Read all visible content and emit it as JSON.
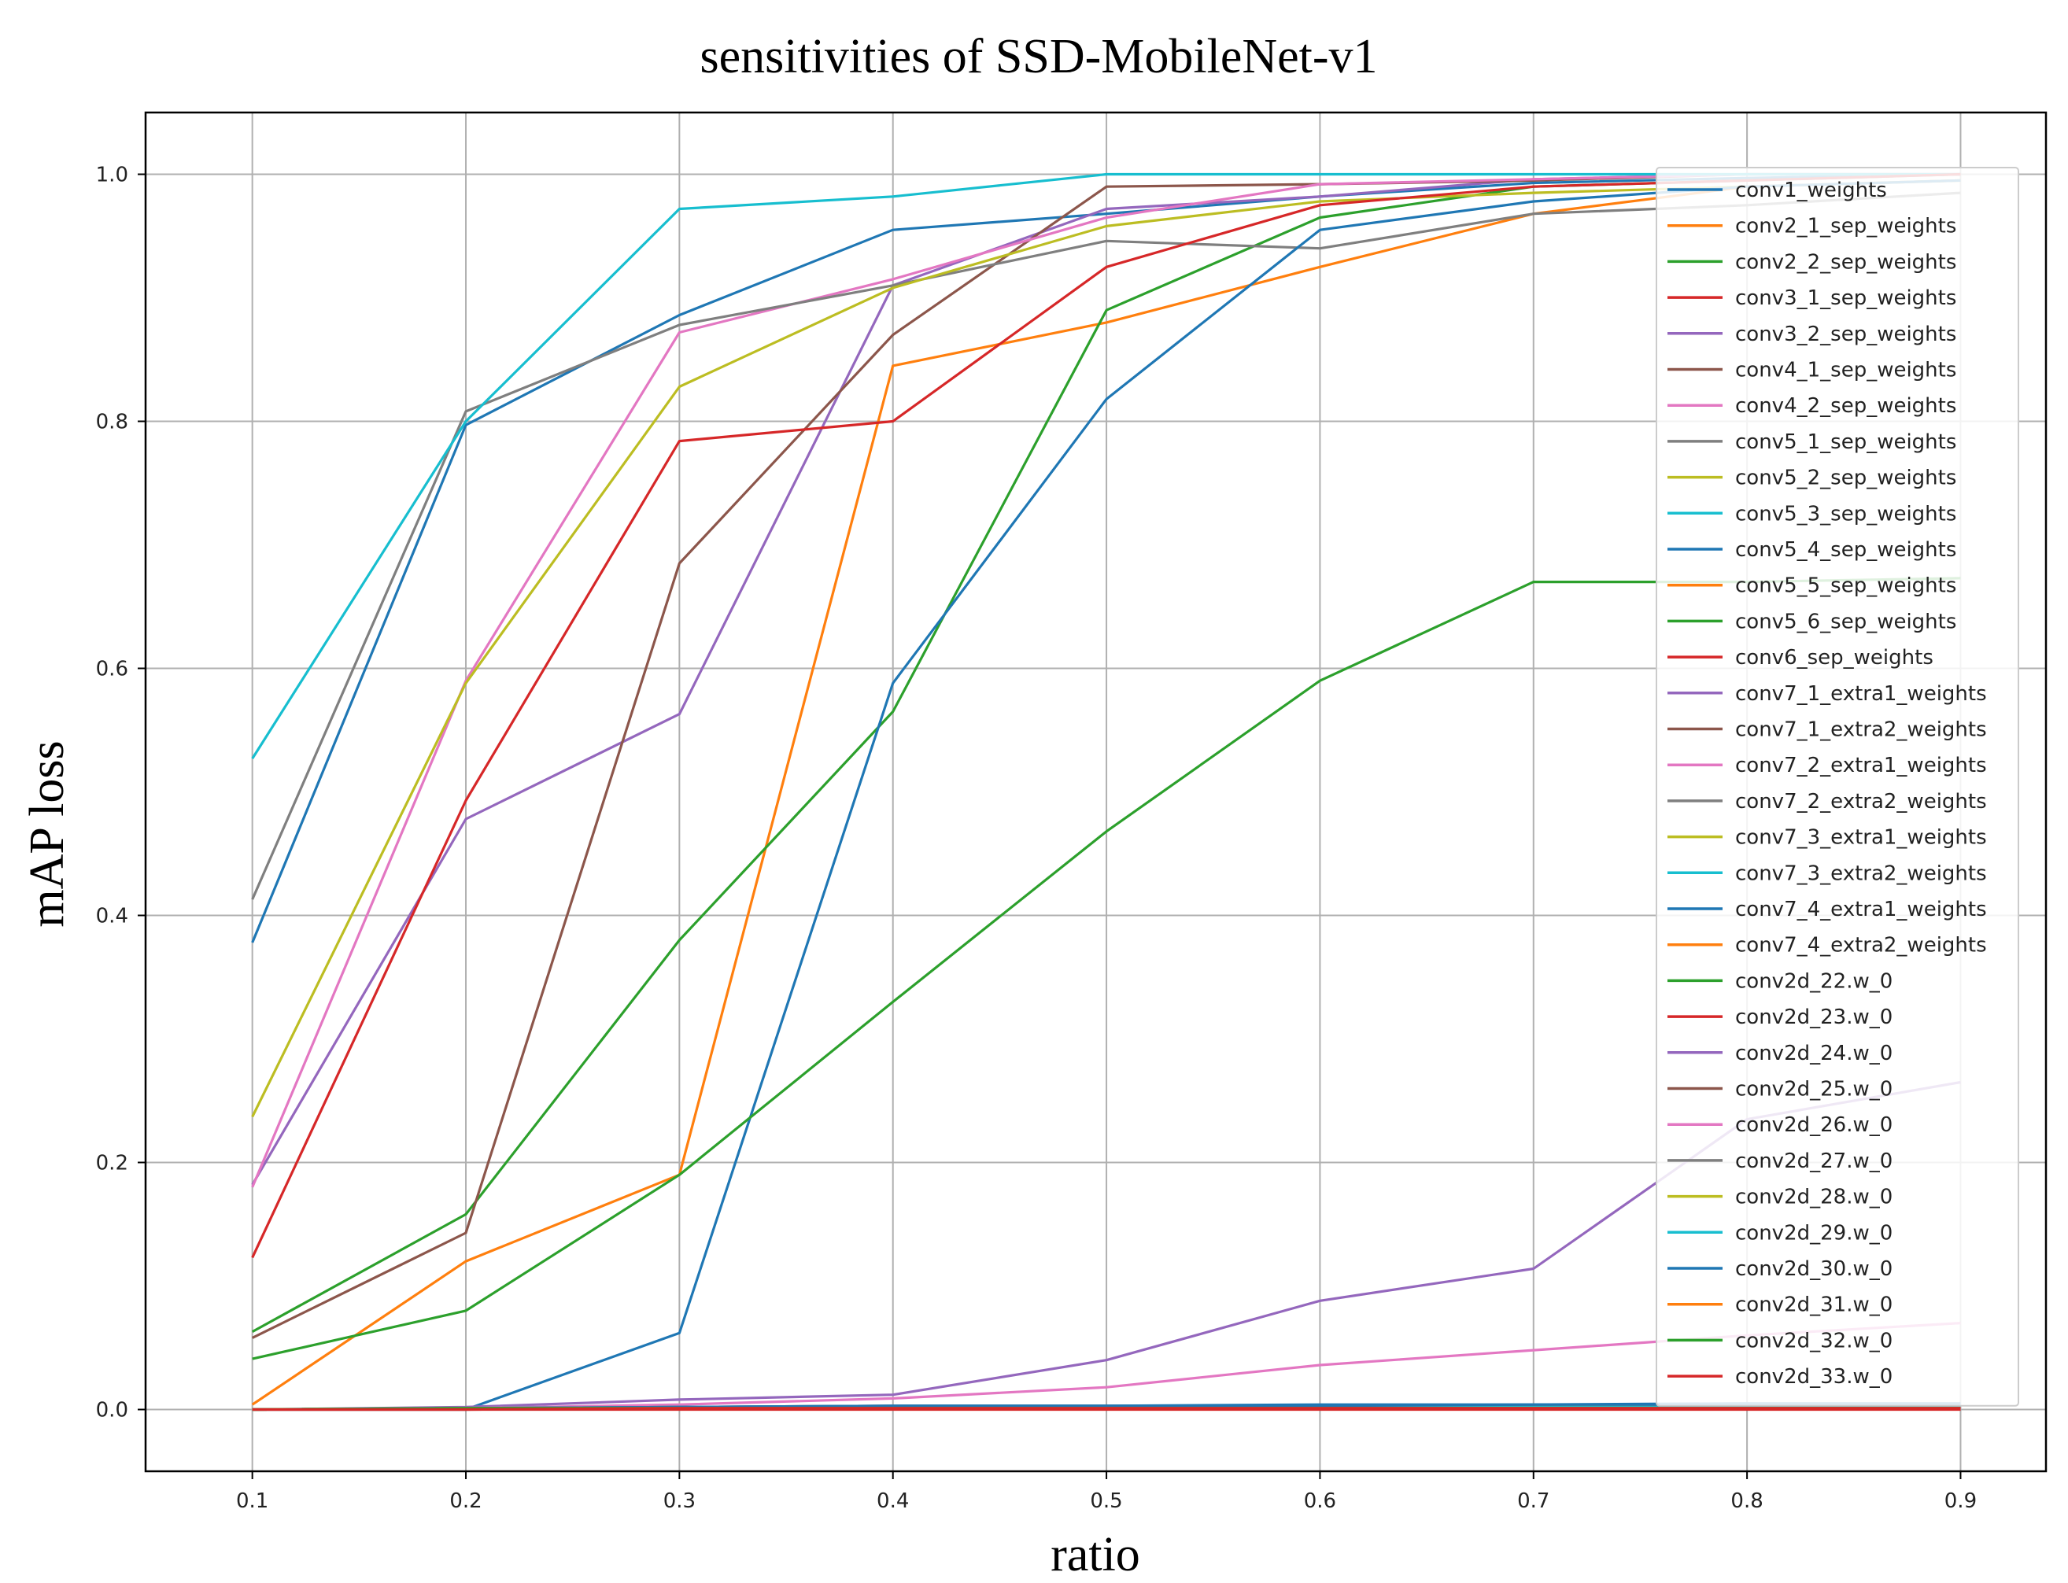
{
  "chart_data": {
    "type": "line",
    "title": "sensitivities of SSD-MobileNet-v1",
    "xlabel": "ratio",
    "ylabel": "mAP loss",
    "xlim": [
      0.05,
      0.94
    ],
    "ylim": [
      -0.05,
      1.05
    ],
    "grid": true,
    "legend_position": "right",
    "x": [
      0.1,
      0.2,
      0.3,
      0.4,
      0.5,
      0.6,
      0.7,
      0.8,
      0.9
    ],
    "x_ticks": [
      "0.1",
      "0.2",
      "0.3",
      "0.4",
      "0.5",
      "0.6",
      "0.7",
      "0.8",
      "0.9"
    ],
    "y_ticks": [
      "0.0",
      "0.2",
      "0.4",
      "0.6",
      "0.8",
      "1.0"
    ],
    "series": [
      {
        "name": "conv1_weights",
        "color": "#1f77b4",
        "values": [
          0.378,
          0.797,
          0.886,
          0.955,
          0.968,
          0.982,
          0.993,
          0.997,
          1.0
        ]
      },
      {
        "name": "conv2_1_sep_weights",
        "color": "#ff7f0e",
        "values": [
          0.004,
          0.12,
          0.19,
          0.845,
          0.88,
          0.925,
          0.968,
          0.99,
          0.995
        ]
      },
      {
        "name": "conv2_2_sep_weights",
        "color": "#2ca02c",
        "values": [
          0.063,
          0.158,
          0.38,
          0.565,
          0.89,
          0.965,
          0.99,
          0.995,
          1.0
        ]
      },
      {
        "name": "conv3_1_sep_weights",
        "color": "#d62728",
        "values": [
          0.0,
          0.001,
          0.001,
          0.001,
          0.001,
          0.001,
          0.001,
          0.001,
          0.001
        ]
      },
      {
        "name": "conv3_2_sep_weights",
        "color": "#9467bd",
        "values": [
          0.182,
          0.478,
          0.563,
          0.91,
          0.972,
          0.982,
          0.996,
          1.0,
          1.0
        ]
      },
      {
        "name": "conv4_1_sep_weights",
        "color": "#8c564b",
        "values": [
          0.058,
          0.143,
          0.685,
          0.87,
          0.99,
          0.992,
          0.995,
          1.0,
          1.0
        ]
      },
      {
        "name": "conv4_2_sep_weights",
        "color": "#e377c2",
        "values": [
          0.18,
          0.59,
          0.872,
          0.915,
          0.965,
          0.992,
          0.996,
          1.0,
          1.0
        ]
      },
      {
        "name": "conv5_1_sep_weights",
        "color": "#7f7f7f",
        "values": [
          0.413,
          0.808,
          0.878,
          0.91,
          0.946,
          0.94,
          0.968,
          0.975,
          0.985
        ]
      },
      {
        "name": "conv5_2_sep_weights",
        "color": "#bcbd22",
        "values": [
          0.237,
          0.588,
          0.828,
          0.908,
          0.958,
          0.978,
          0.985,
          0.99,
          0.995
        ]
      },
      {
        "name": "conv5_3_sep_weights",
        "color": "#17becf",
        "values": [
          0.527,
          0.8,
          0.972,
          0.982,
          1.0,
          1.0,
          1.0,
          1.0,
          1.0
        ]
      },
      {
        "name": "conv5_4_sep_weights",
        "color": "#1f77b4",
        "values": [
          0.0,
          0.0,
          0.062,
          0.588,
          0.818,
          0.955,
          0.978,
          0.99,
          0.995
        ]
      },
      {
        "name": "conv5_5_sep_weights",
        "color": "#ff7f0e",
        "values": [
          0.0,
          0.001,
          0.002,
          0.002,
          0.002,
          0.002,
          0.002,
          0.002,
          0.002
        ]
      },
      {
        "name": "conv5_6_sep_weights",
        "color": "#2ca02c",
        "values": [
          0.041,
          0.08,
          0.19,
          0.33,
          0.468,
          0.59,
          0.67,
          0.67,
          0.673
        ]
      },
      {
        "name": "conv6_sep_weights",
        "color": "#d62728",
        "values": [
          0.123,
          0.493,
          0.784,
          0.8,
          0.925,
          0.975,
          0.99,
          0.995,
          1.0
        ]
      },
      {
        "name": "conv7_1_extra1_weights",
        "color": "#9467bd",
        "values": [
          0.0,
          0.002,
          0.008,
          0.012,
          0.04,
          0.088,
          0.114,
          0.235,
          0.265
        ]
      },
      {
        "name": "conv7_1_extra2_weights",
        "color": "#8c564b",
        "values": [
          0.0,
          0.001,
          0.002,
          0.003,
          0.003,
          0.003,
          0.003,
          0.003,
          0.003
        ]
      },
      {
        "name": "conv7_2_extra1_weights",
        "color": "#e377c2",
        "values": [
          0.0,
          0.001,
          0.004,
          0.009,
          0.018,
          0.036,
          0.048,
          0.06,
          0.07
        ]
      },
      {
        "name": "conv7_2_extra2_weights",
        "color": "#7f7f7f",
        "values": [
          0.0,
          0.001,
          0.002,
          0.002,
          0.002,
          0.002,
          0.002,
          0.002,
          0.002
        ]
      },
      {
        "name": "conv7_3_extra1_weights",
        "color": "#bcbd22",
        "values": [
          0.0,
          0.001,
          0.002,
          0.002,
          0.002,
          0.002,
          0.002,
          0.002,
          0.002
        ]
      },
      {
        "name": "conv7_3_extra2_weights",
        "color": "#17becf",
        "values": [
          0.0,
          0.001,
          0.002,
          0.002,
          0.002,
          0.002,
          0.002,
          0.002,
          0.002
        ]
      },
      {
        "name": "conv7_4_extra1_weights",
        "color": "#1f77b4",
        "values": [
          0.0,
          0.001,
          0.002,
          0.003,
          0.003,
          0.004,
          0.004,
          0.005,
          0.005
        ]
      },
      {
        "name": "conv7_4_extra2_weights",
        "color": "#ff7f0e",
        "values": [
          0.0,
          0.001,
          0.001,
          0.001,
          0.001,
          0.001,
          0.001,
          0.001,
          0.001
        ]
      },
      {
        "name": "conv2d_22.w_0",
        "color": "#2ca02c",
        "values": [
          0.0,
          0.001,
          0.001,
          0.001,
          0.001,
          0.001,
          0.001,
          0.001,
          0.001
        ]
      },
      {
        "name": "conv2d_23.w_0",
        "color": "#d62728",
        "values": [
          0.0,
          0.0,
          0.0,
          0.0,
          0.0,
          0.0,
          0.0,
          0.0,
          0.0
        ]
      },
      {
        "name": "conv2d_24.w_0",
        "color": "#9467bd",
        "values": [
          0.0,
          0.001,
          0.001,
          0.001,
          0.001,
          0.001,
          0.001,
          0.001,
          0.001
        ]
      },
      {
        "name": "conv2d_25.w_0",
        "color": "#8c564b",
        "values": [
          0.0,
          0.0,
          0.001,
          0.001,
          0.001,
          0.001,
          0.001,
          0.001,
          0.001
        ]
      },
      {
        "name": "conv2d_26.w_0",
        "color": "#e377c2",
        "values": [
          0.0,
          0.001,
          0.001,
          0.001,
          0.001,
          0.001,
          0.001,
          0.001,
          0.001
        ]
      },
      {
        "name": "conv2d_27.w_0",
        "color": "#7f7f7f",
        "values": [
          0.0,
          0.001,
          0.001,
          0.001,
          0.001,
          0.001,
          0.001,
          0.001,
          0.001
        ]
      },
      {
        "name": "conv2d_28.w_0",
        "color": "#bcbd22",
        "values": [
          0.0,
          0.001,
          0.001,
          0.001,
          0.001,
          0.001,
          0.001,
          0.001,
          0.001
        ]
      },
      {
        "name": "conv2d_29.w_0",
        "color": "#17becf",
        "values": [
          0.0,
          0.001,
          0.001,
          0.001,
          0.001,
          0.001,
          0.001,
          0.001,
          0.001
        ]
      },
      {
        "name": "conv2d_30.w_0",
        "color": "#1f77b4",
        "values": [
          0.0,
          0.001,
          0.002,
          0.003,
          0.003,
          0.003,
          0.004,
          0.004,
          0.004
        ]
      },
      {
        "name": "conv2d_31.w_0",
        "color": "#ff7f0e",
        "values": [
          0.0,
          0.001,
          0.001,
          0.001,
          0.001,
          0.001,
          0.001,
          0.001,
          0.001
        ]
      },
      {
        "name": "conv2d_32.w_0",
        "color": "#2ca02c",
        "values": [
          0.0,
          0.001,
          0.001,
          0.001,
          0.001,
          0.001,
          0.001,
          0.001,
          0.001
        ]
      },
      {
        "name": "conv2d_33.w_0",
        "color": "#d62728",
        "values": [
          0.0,
          0.0,
          0.001,
          0.001,
          0.001,
          0.001,
          0.001,
          0.001,
          0.001
        ]
      }
    ]
  }
}
